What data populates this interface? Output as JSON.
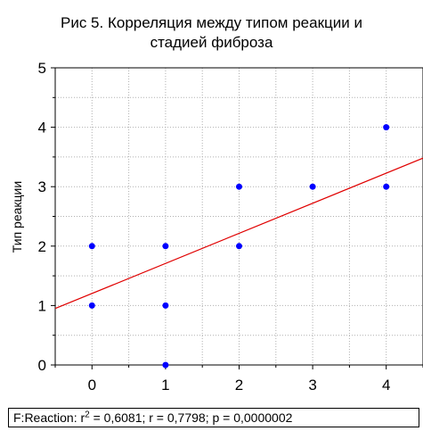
{
  "chart_data": {
    "type": "scatter",
    "title_lines": [
      "Рис 5. Корреляция между типом реакции и",
      "стадией фиброза"
    ],
    "xlabel": "",
    "ylabel": "Тип реакции",
    "xlim": [
      -0.5,
      4.5
    ],
    "ylim": [
      0,
      5
    ],
    "x_ticks": [
      0,
      1,
      2,
      3,
      4
    ],
    "y_ticks": [
      0,
      1,
      2,
      3,
      4,
      5
    ],
    "grid": true,
    "points": [
      {
        "x": 0,
        "y": 1
      },
      {
        "x": 0,
        "y": 2
      },
      {
        "x": 1,
        "y": 0
      },
      {
        "x": 1,
        "y": 1
      },
      {
        "x": 1,
        "y": 2
      },
      {
        "x": 2,
        "y": 2
      },
      {
        "x": 2,
        "y": 3
      },
      {
        "x": 3,
        "y": 3
      },
      {
        "x": 4,
        "y": 3
      },
      {
        "x": 4,
        "y": 4
      }
    ],
    "fit_line": {
      "x0": -0.5,
      "y0": 0.95,
      "x1": 4.5,
      "y1": 3.48
    },
    "colors": {
      "points": "#0000ff",
      "fit_line": "#e00000",
      "grid": "#b0b0b0"
    },
    "stats": {
      "prefix": "F:Reaction:  r",
      "exponent": "2",
      "rest": " = 0,6081;  r = 0,7798; p = 0,0000002"
    }
  }
}
